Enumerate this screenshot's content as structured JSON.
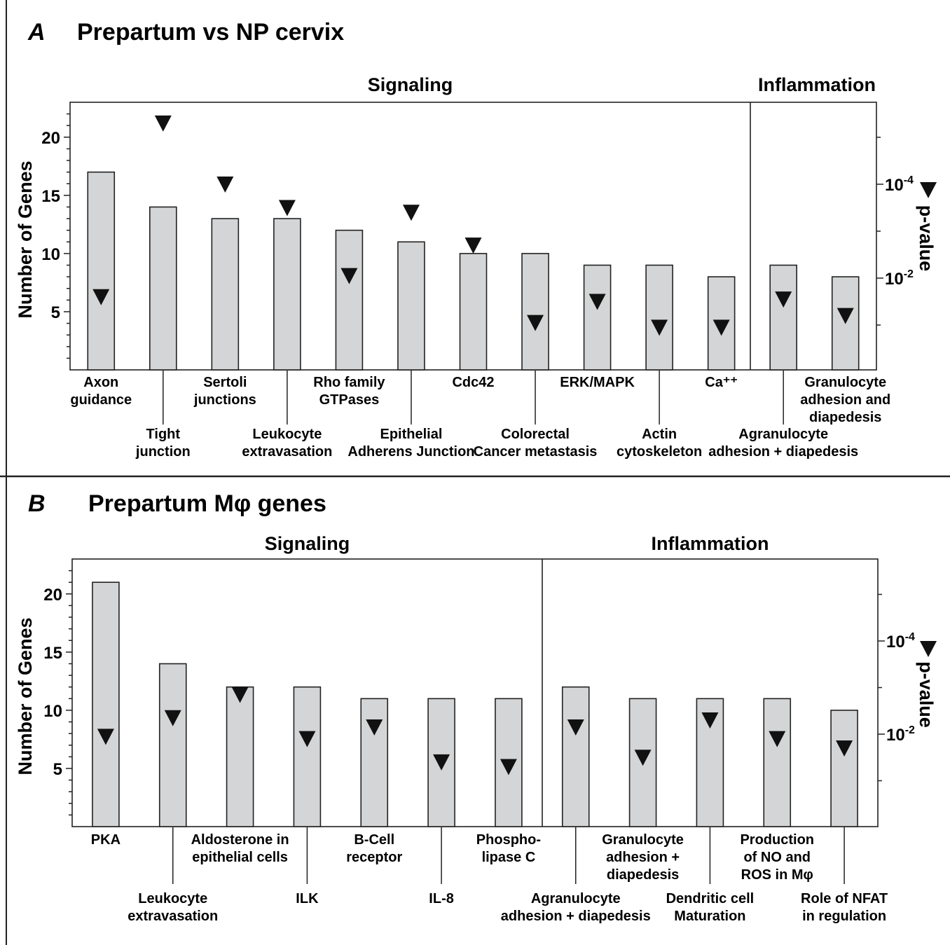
{
  "chart_data": [
    {
      "type": "bar",
      "panel_letter": "A",
      "title": "Prepartum vs NP cervix",
      "ylabel": "Number of Genes",
      "y2label": "p-value",
      "y2ticks": [
        {
          "base": "10",
          "exp": "-4"
        },
        {
          "base": "10",
          "exp": "-2"
        }
      ],
      "ylim": [
        0,
        23
      ],
      "yticks": [
        5,
        10,
        15,
        20
      ],
      "groups": [
        {
          "label": "Signaling",
          "count": 11
        },
        {
          "label": "Inflammation",
          "count": 2
        }
      ],
      "categories": [
        {
          "lines": [
            "Axon",
            "guidance"
          ],
          "row": "upper"
        },
        {
          "lines": [
            "Tight",
            "junction"
          ],
          "row": "lower"
        },
        {
          "lines": [
            "Sertoli",
            "junctions"
          ],
          "row": "upper"
        },
        {
          "lines": [
            "Leukocyte",
            "extravasation"
          ],
          "row": "lower"
        },
        {
          "lines": [
            "Rho family",
            "GTPases"
          ],
          "row": "upper"
        },
        {
          "lines": [
            "Epithelial",
            "Adherens  Junction"
          ],
          "row": "lower"
        },
        {
          "lines": [
            "Cdc42"
          ],
          "row": "upper"
        },
        {
          "lines": [
            "Colorectal",
            "Cancer metastasis"
          ],
          "row": "lower"
        },
        {
          "lines": [
            "ERK/MAPK"
          ],
          "row": "upper"
        },
        {
          "lines": [
            "Actin",
            "cytoskeleton"
          ],
          "row": "lower"
        },
        {
          "lines": [
            "Ca⁺⁺"
          ],
          "row": "upper"
        },
        {
          "lines": [
            "Agranulocyte",
            "adhesion + diapedesis"
          ],
          "row": "lower"
        },
        {
          "lines": [
            "Granulocyte",
            "adhesion and",
            "diapedesis"
          ],
          "row": "upper"
        }
      ],
      "values": [
        17,
        14,
        13,
        13,
        12,
        11,
        10,
        10,
        9,
        9,
        8,
        9,
        8
      ],
      "neg_log10_pvalue": [
        1.6,
        5.3,
        4.0,
        3.5,
        2.05,
        3.4,
        2.7,
        1.05,
        1.5,
        0.95,
        0.95,
        1.55,
        1.2
      ]
    },
    {
      "type": "bar",
      "panel_letter": "B",
      "title": "Prepartum Mφ genes",
      "ylabel": "Number of Genes",
      "y2label": "p-value",
      "y2ticks": [
        {
          "base": "10",
          "exp": "-4"
        },
        {
          "base": "10",
          "exp": "-2"
        }
      ],
      "ylim": [
        0,
        23
      ],
      "yticks": [
        5,
        10,
        15,
        20
      ],
      "groups": [
        {
          "label": "Signaling",
          "count": 7
        },
        {
          "label": "Inflammation",
          "count": 5
        }
      ],
      "categories": [
        {
          "lines": [
            "PKA"
          ],
          "row": "upper"
        },
        {
          "lines": [
            "Leukocyte",
            "extravasation"
          ],
          "row": "lower"
        },
        {
          "lines": [
            "Aldosterone in",
            "epithelial  cells"
          ],
          "row": "upper"
        },
        {
          "lines": [
            "ILK"
          ],
          "row": "lower"
        },
        {
          "lines": [
            "B-Cell",
            "receptor"
          ],
          "row": "upper"
        },
        {
          "lines": [
            "IL-8"
          ],
          "row": "lower"
        },
        {
          "lines": [
            "Phospho-",
            "lipase C"
          ],
          "row": "upper"
        },
        {
          "lines": [
            "Agranulocyte",
            "adhesion + diapedesis"
          ],
          "row": "lower"
        },
        {
          "lines": [
            "Granulocyte",
            "adhesion +",
            "diapedesis"
          ],
          "row": "upper"
        },
        {
          "lines": [
            "Dendritic cell",
            "Maturation"
          ],
          "row": "lower"
        },
        {
          "lines": [
            "Production",
            "of NO and",
            "ROS in Mφ"
          ],
          "row": "upper"
        },
        {
          "lines": [
            "Role of NFAT",
            "in regulation"
          ],
          "row": "lower"
        }
      ],
      "values": [
        21,
        14,
        12,
        12,
        11,
        11,
        11,
        12,
        11,
        11,
        11,
        10
      ],
      "neg_log10_pvalue": [
        1.95,
        2.35,
        2.85,
        1.9,
        2.15,
        1.4,
        1.3,
        2.15,
        1.5,
        2.3,
        1.9,
        1.7
      ]
    }
  ]
}
